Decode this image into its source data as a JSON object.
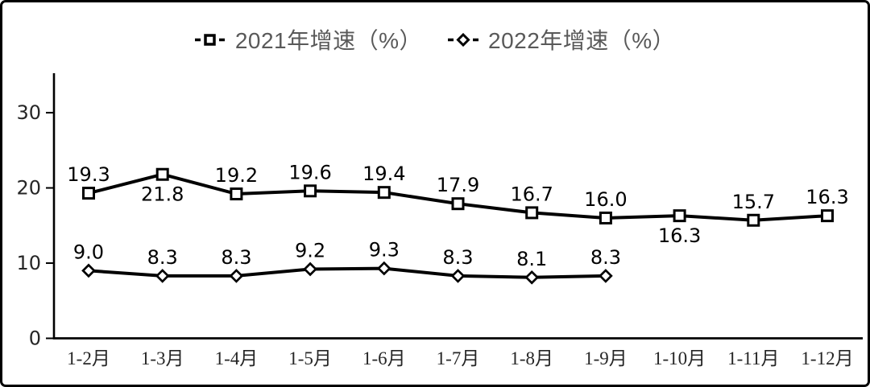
{
  "chart_data": {
    "type": "line",
    "title": "",
    "categories": [
      "1-2月",
      "1-3月",
      "1-4月",
      "1-5月",
      "1-6月",
      "1-7月",
      "1-8月",
      "1-9月",
      "1-10月",
      "1-11月",
      "1-12月"
    ],
    "series": [
      {
        "name": "2021年增速（%）",
        "marker": "square",
        "color": "#000000",
        "values": [
          19.3,
          21.8,
          19.2,
          19.6,
          19.4,
          17.9,
          16.7,
          16.0,
          16.3,
          15.7,
          16.3
        ],
        "label_below_indices": [
          1,
          8
        ]
      },
      {
        "name": "2022年增速（%）",
        "marker": "diamond",
        "color": "#000000",
        "values": [
          9.0,
          8.3,
          8.3,
          9.2,
          9.3,
          8.3,
          8.1,
          8.3
        ],
        "label_below_indices": []
      }
    ],
    "xlabel": "",
    "ylabel": "",
    "yticks": [
      0,
      10,
      20,
      30
    ],
    "ylim": [
      0,
      35
    ],
    "grid": false,
    "legend_position": "top",
    "colors": {
      "series_line": "#000000",
      "marker_fill": "#ffffff",
      "legend_text": "#595959",
      "axis": "#000000",
      "tick_label": "#262626",
      "data_label": "#000000",
      "background": "#ffffff",
      "border": "#000000"
    }
  }
}
